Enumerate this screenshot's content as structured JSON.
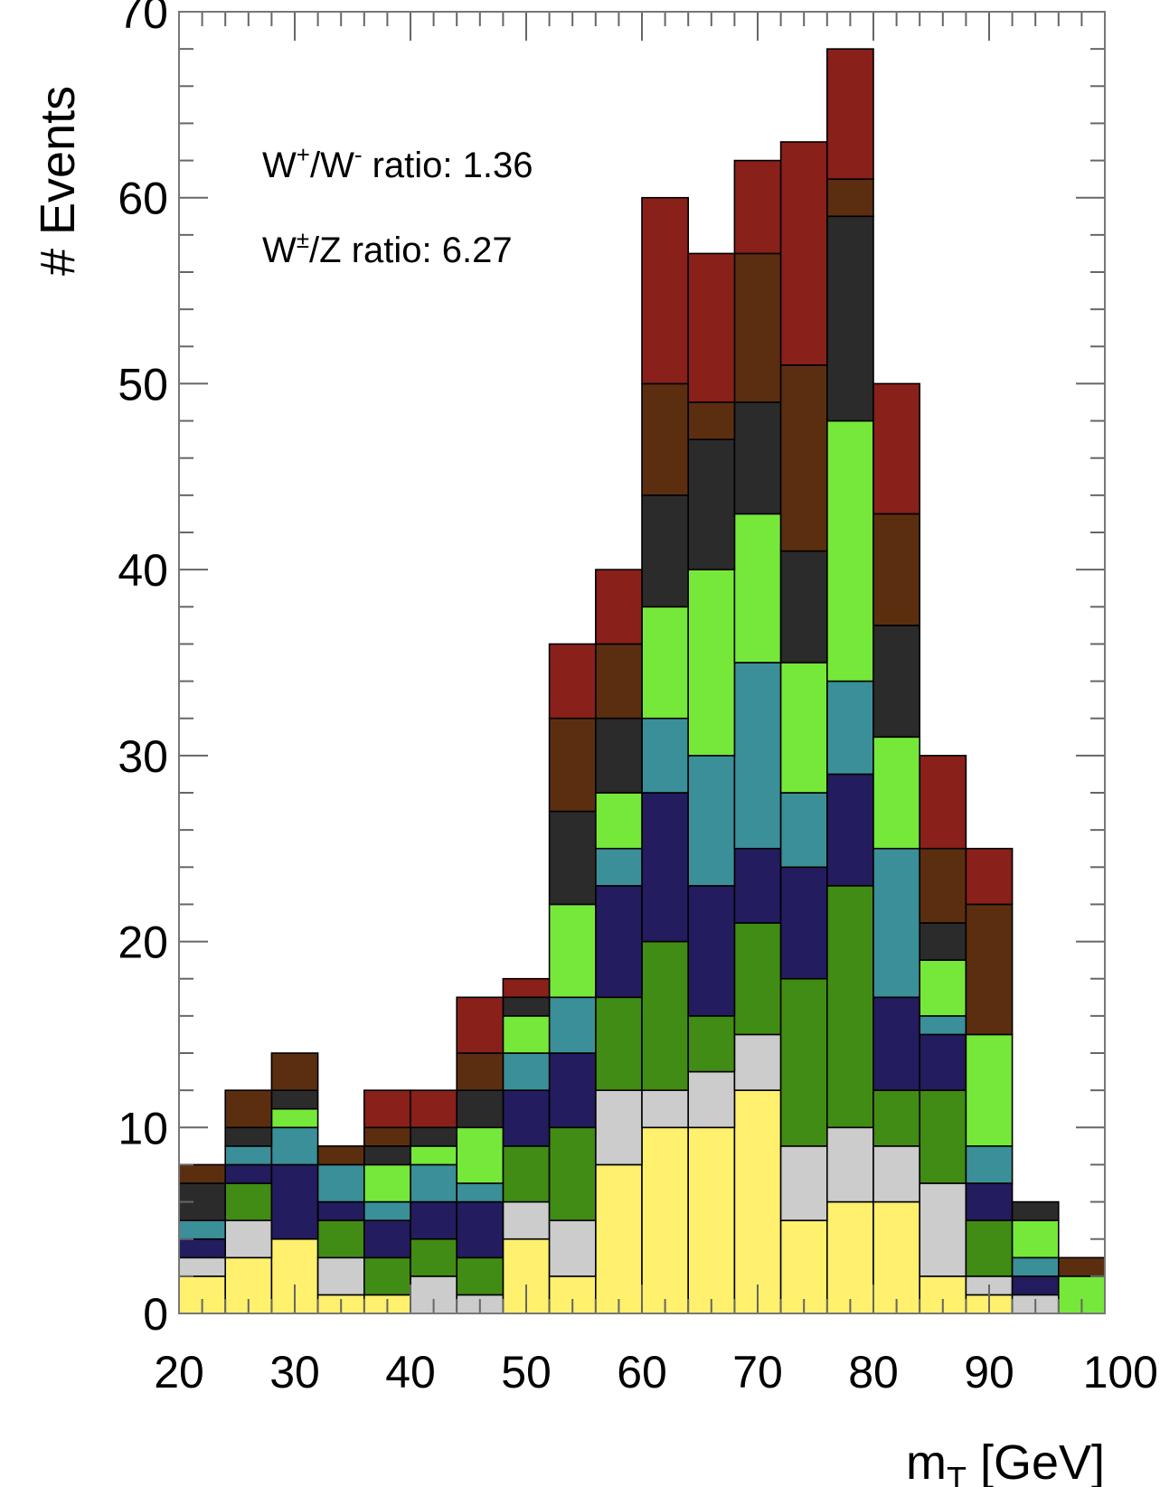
{
  "chart_data": {
    "type": "bar",
    "stacked": true,
    "title": "",
    "xlabel": "m",
    "xlabel_sub": "T",
    "xlabel_unit": " [GeV]",
    "ylabel": "# Events",
    "xlim": [
      20,
      100
    ],
    "ylim": [
      0,
      70
    ],
    "x_ticks": [
      "20",
      "30",
      "40",
      "50",
      "60",
      "70",
      "80",
      "90",
      "100"
    ],
    "y_ticks": [
      "0",
      "10",
      "20",
      "30",
      "40",
      "50",
      "60",
      "70"
    ],
    "bin_width": 4,
    "bin_edges": [
      20,
      24,
      28,
      32,
      36,
      40,
      44,
      48,
      52,
      56,
      60,
      64,
      68,
      72,
      76,
      80,
      84,
      88,
      92,
      96,
      100
    ],
    "grid": false,
    "annotations": [
      {
        "main1": "W",
        "sup1": "+",
        "main2": "/W",
        "sup2": "-",
        "rest": " ratio: 1.36"
      },
      {
        "main1": "W",
        "sup1": "±",
        "main2": "/Z ratio: 6.27",
        "sup2": "",
        "rest": ""
      }
    ],
    "series": [
      {
        "color": "#fff06e",
        "values": [
          2,
          3,
          4,
          1,
          1,
          0,
          0,
          4,
          2,
          8,
          10,
          10,
          12,
          5,
          6,
          6,
          2,
          1,
          0,
          0
        ]
      },
      {
        "color": "#cccccc",
        "values": [
          1,
          2,
          0,
          2,
          0,
          2,
          1,
          2,
          3,
          4,
          2,
          3,
          3,
          4,
          4,
          3,
          5,
          1,
          1,
          0
        ]
      },
      {
        "color": "#418c14",
        "values": [
          0,
          2,
          0,
          2,
          2,
          2,
          2,
          3,
          5,
          5,
          8,
          3,
          6,
          9,
          13,
          3,
          5,
          3,
          0,
          0
        ]
      },
      {
        "color": "#231c5e",
        "values": [
          1,
          1,
          4,
          1,
          2,
          2,
          3,
          3,
          4,
          6,
          8,
          7,
          4,
          6,
          6,
          5,
          3,
          2,
          1,
          0
        ]
      },
      {
        "color": "#3b8f99",
        "values": [
          1,
          1,
          2,
          2,
          1,
          2,
          1,
          2,
          3,
          2,
          4,
          7,
          10,
          4,
          5,
          8,
          1,
          2,
          1,
          0
        ]
      },
      {
        "color": "#76e83a",
        "values": [
          0,
          0,
          1,
          0,
          2,
          1,
          3,
          2,
          5,
          3,
          6,
          10,
          8,
          7,
          14,
          6,
          3,
          6,
          2,
          2
        ]
      },
      {
        "color": "#2b2b2b",
        "values": [
          2,
          1,
          1,
          0,
          1,
          1,
          2,
          1,
          5,
          4,
          6,
          7,
          6,
          6,
          11,
          6,
          2,
          0,
          1,
          0
        ]
      },
      {
        "color": "#5c2e10",
        "values": [
          1,
          2,
          2,
          1,
          1,
          0,
          2,
          0,
          5,
          4,
          6,
          2,
          8,
          10,
          2,
          6,
          4,
          7,
          0,
          1
        ]
      },
      {
        "color": "#89201a",
        "values": [
          0,
          0,
          0,
          0,
          2,
          2,
          3,
          1,
          4,
          4,
          10,
          8,
          5,
          12,
          7,
          7,
          5,
          3,
          0,
          0
        ]
      }
    ]
  }
}
